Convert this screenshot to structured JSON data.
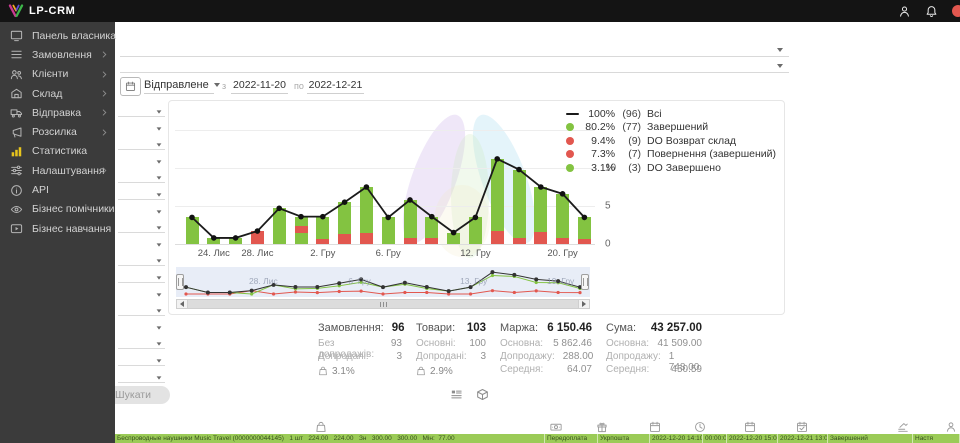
{
  "topbar": {
    "brand": "LP-CRM",
    "notification_badge": "1",
    "icons": [
      "person-icon",
      "bell-icon",
      "alert-indicator"
    ]
  },
  "sidebar": {
    "items": [
      {
        "label": "Панель власника",
        "icon": "dashboard-icon",
        "chevron": false,
        "active": false
      },
      {
        "label": "Замовлення",
        "icon": "orders-icon",
        "chevron": true,
        "active": false
      },
      {
        "label": "Клієнти",
        "icon": "clients-icon",
        "chevron": true,
        "active": false
      },
      {
        "label": "Склад",
        "icon": "warehouse-icon",
        "chevron": true,
        "active": false
      },
      {
        "label": "Відправка",
        "icon": "shipping-icon",
        "chevron": true,
        "active": false
      },
      {
        "label": "Розсилка",
        "icon": "mailing-icon",
        "chevron": true,
        "active": false
      },
      {
        "label": "Статистика",
        "icon": "stats-icon",
        "chevron": false,
        "active": true
      },
      {
        "label": "Налаштування",
        "icon": "settings-icon",
        "chevron": true,
        "active": false
      },
      {
        "label": "API",
        "icon": "api-icon",
        "chevron": false,
        "active": false
      },
      {
        "label": "Бізнес помічники",
        "icon": "helpers-icon",
        "chevron": false,
        "active": false
      },
      {
        "label": "Бізнес навчання",
        "icon": "training-icon",
        "chevron": false,
        "active": false
      }
    ]
  },
  "filters": {
    "date_type_label": "Відправлене",
    "from_label": "з",
    "date_from": "2022-11-20",
    "to_label": "по",
    "date_to": "2022-12-21",
    "search_button_label": "Шукати",
    "side_selects_count": 17
  },
  "chart_data": {
    "type": "bar",
    "stacked": true,
    "grid": true,
    "legend_position": "top-right",
    "yticks": [
      0,
      5,
      10
    ],
    "ylim": [
      0,
      15
    ],
    "colors": {
      "green": "#83C341",
      "red": "#E2574F",
      "line": "#1b1b1b"
    },
    "bars": [
      {
        "segments": [
          [
            "g",
            3.5
          ]
        ]
      },
      {
        "segments": [
          [
            "g",
            0.8
          ]
        ]
      },
      {
        "segments": [
          [
            "g",
            0.8
          ]
        ]
      },
      {
        "segments": [
          [
            "r",
            1.7
          ]
        ]
      },
      {
        "segments": [
          [
            "g",
            4.7
          ]
        ]
      },
      {
        "segments": [
          [
            "g",
            1.4
          ],
          [
            "r",
            1.0
          ],
          [
            "g",
            1.2
          ]
        ]
      },
      {
        "segments": [
          [
            "r",
            0.7
          ],
          [
            "g",
            2.9
          ]
        ]
      },
      {
        "segments": [
          [
            "r",
            1.3
          ],
          [
            "g",
            4.2
          ]
        ]
      },
      {
        "segments": [
          [
            "r",
            1.5
          ],
          [
            "g",
            6.0
          ]
        ]
      },
      {
        "segments": [
          [
            "g",
            3.5
          ]
        ]
      },
      {
        "segments": [
          [
            "r",
            0.8
          ],
          [
            "g",
            5.0
          ]
        ]
      },
      {
        "segments": [
          [
            "r",
            0.8
          ],
          [
            "g",
            2.8
          ]
        ]
      },
      {
        "segments": [
          [
            "g",
            1.5
          ]
        ]
      },
      {
        "segments": [
          [
            "g",
            3.5
          ]
        ]
      },
      {
        "segments": [
          [
            "r",
            1.7
          ],
          [
            "g",
            9.5
          ]
        ]
      },
      {
        "segments": [
          [
            "r",
            0.8
          ],
          [
            "g",
            9.0
          ]
        ]
      },
      {
        "segments": [
          [
            "r",
            1.6
          ],
          [
            "g",
            5.9
          ]
        ]
      },
      {
        "segments": [
          [
            "r",
            0.8
          ],
          [
            "g",
            5.8
          ]
        ]
      },
      {
        "segments": [
          [
            "r",
            0.7
          ],
          [
            "g",
            2.8
          ]
        ]
      }
    ],
    "line_series_label": "Всі",
    "x_tick_labels": [
      {
        "i": 1,
        "label": "24. Лис"
      },
      {
        "i": 3,
        "label": "28. Лис"
      },
      {
        "i": 6,
        "label": "2. Гру"
      },
      {
        "i": 9,
        "label": "6. Гру"
      },
      {
        "i": 13,
        "label": "12. Гру"
      },
      {
        "i": 17,
        "label": "20. Гру"
      }
    ],
    "legend": [
      {
        "symbol": "line",
        "color": "#1b1b1b",
        "pct": "100%",
        "count": "(96)",
        "label": "Всі"
      },
      {
        "symbol": "dot",
        "color": "#83C341",
        "pct": "80.2%",
        "count": "(77)",
        "label": "Завершений"
      },
      {
        "symbol": "dot",
        "color": "#E2574F",
        "pct": "9.4%",
        "count": "(9)",
        "label": "DO Возврат склад"
      },
      {
        "symbol": "dot",
        "color": "#E2574F",
        "pct": "7.3%",
        "count": "(7)",
        "label": "Повернення (завершений)"
      },
      {
        "symbol": "dot",
        "color": "#83C341",
        "pct": "3.1%",
        "count": "(3)",
        "label": "DO Завершено"
      }
    ],
    "navigator_labels": [
      {
        "x": 0.21,
        "label": "28. Лис"
      },
      {
        "x": 0.45,
        "label": "6. Гру"
      },
      {
        "x": 0.72,
        "label": "13. Гру"
      },
      {
        "x": 0.93,
        "label": "19. Гру"
      }
    ]
  },
  "stats": {
    "columns": [
      {
        "title": "Замовлення:",
        "value": "96",
        "rows": [
          [
            "Без допродажів:",
            "93"
          ],
          [
            "Допродані:",
            "3"
          ]
        ],
        "upsell": "3.1%"
      },
      {
        "title": "Товари:",
        "value": "103",
        "rows": [
          [
            "Основні:",
            "100"
          ],
          [
            "Допродані:",
            "3"
          ]
        ],
        "upsell": "2.9%"
      },
      {
        "title": "Маржа:",
        "value": "6 150.46",
        "rows": [
          [
            "Основна:",
            "5 862.46"
          ],
          [
            "Допродажу:",
            "288.00"
          ],
          [
            "Середня:",
            "64.07"
          ]
        ],
        "upsell": null
      },
      {
        "title": "Сума:",
        "value": "43 257.00",
        "rows": [
          [
            "Основна:",
            "41 509.00"
          ],
          [
            "Допродажу:",
            "1 748.00"
          ],
          [
            "Середня:",
            "450.59"
          ]
        ],
        "upsell": null
      }
    ]
  },
  "view_toggles": [
    "list-indent-icon",
    "cube-icon"
  ],
  "bottom_table": {
    "column_icons": [
      "bag-icon",
      "banknote-icon",
      "gift-icon",
      "calendar-icon",
      "clock-icon",
      "calendar-icon",
      "calendar-check-icon",
      "chart-lines-icon",
      "person-icon"
    ],
    "row_cells": [
      "Беспроводные наушники Music Travel (0000000044145)   1 шт   224.00   224.00   Зн   300.00   300.00   Мін:  77.00",
      "Передоплата",
      "Укрпошта",
      "2022-12-20 14:10:06",
      "00:00:00",
      "2022-12-20 15:02:20",
      "2022-12-21 13:07:05",
      "Завершений",
      "Настя"
    ],
    "row_color": "#9bcb57"
  }
}
